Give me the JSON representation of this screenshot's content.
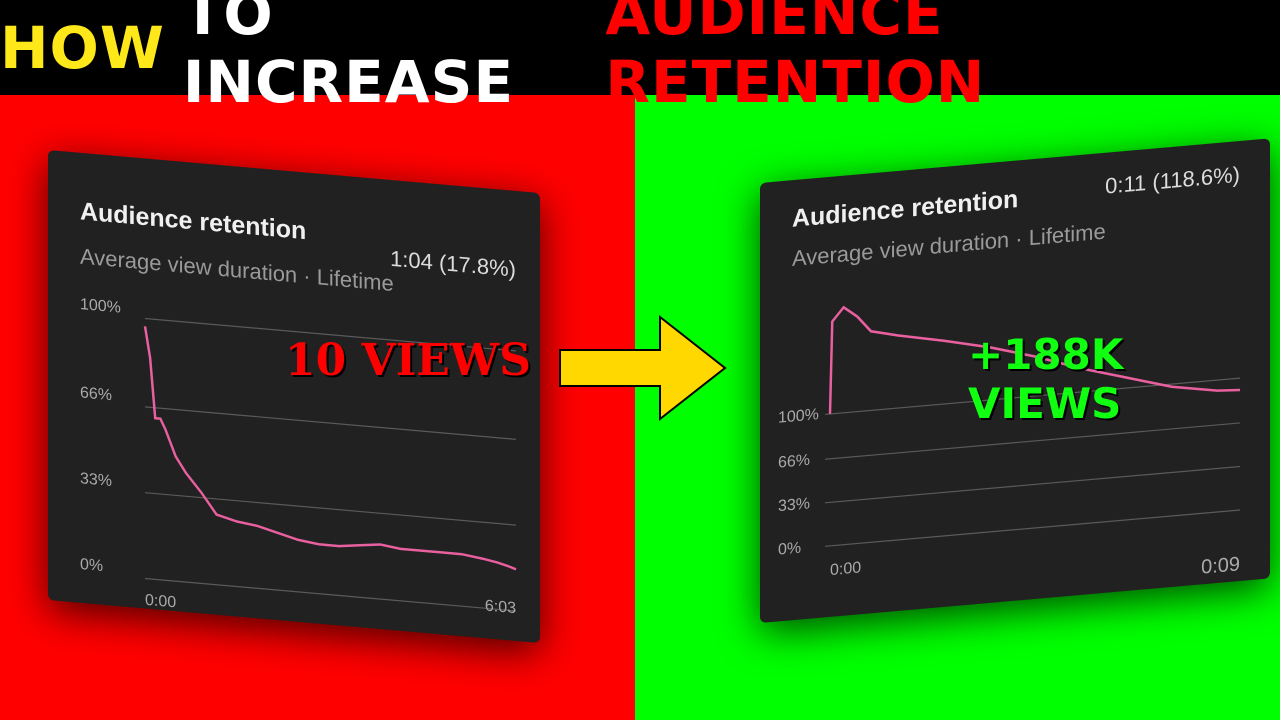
{
  "headline": [
    "HOW",
    "TO INCREASE",
    "AUDIENCE RETENTION"
  ],
  "chart_data": [
    {
      "type": "line",
      "title": "Audience retention",
      "subtitle": "Average view duration · Lifetime",
      "stat": "1:04 (17.8%)",
      "annotation": "10 VIEWS",
      "x": [
        0,
        5,
        10,
        15,
        20,
        30,
        40,
        55,
        70,
        90,
        110,
        130,
        150,
        170,
        190,
        210,
        230,
        250,
        270,
        290,
        310,
        330,
        345,
        355,
        363
      ],
      "values": [
        97,
        85,
        62,
        62,
        58,
        48,
        42,
        35,
        27,
        25,
        24,
        22,
        20,
        19,
        19,
        20,
        21,
        20,
        20,
        20,
        20,
        19,
        18,
        17,
        16
      ],
      "color": "#e8609f",
      "xlim": [
        0,
        363
      ],
      "ylim": [
        0,
        100
      ],
      "xticks": [
        {
          "value": 0,
          "label": "0:00"
        },
        {
          "value": 363,
          "label": "6:03"
        }
      ],
      "yticks": [
        {
          "value": 0,
          "label": "0%"
        },
        {
          "value": 33,
          "label": "33%"
        },
        {
          "value": 66,
          "label": "66%"
        },
        {
          "value": 100,
          "label": "100%"
        }
      ],
      "grid": true
    },
    {
      "type": "line",
      "title": "Audience retention",
      "subtitle": "Average view duration · Lifetime",
      "stat": "0:11 (118.6%)",
      "annotation": "+188K VIEWS",
      "x": [
        0,
        0.05,
        0.3,
        0.6,
        0.9,
        1.5,
        2.5,
        3.5,
        4.5,
        5.5,
        6.5,
        7.5,
        8.5,
        9
      ],
      "values": [
        100,
        170,
        180,
        172,
        160,
        155,
        148,
        140,
        130,
        118,
        108,
        98,
        92,
        91
      ],
      "color": "#e8609f",
      "xlim": [
        0,
        9
      ],
      "ylim": [
        0,
        185
      ],
      "xticks": [
        {
          "value": 0,
          "label": "0:00"
        },
        {
          "value": 9,
          "label": "0:09"
        }
      ],
      "yticks": [
        {
          "value": 0,
          "label": "0%"
        },
        {
          "value": 33,
          "label": "33%"
        },
        {
          "value": 66,
          "label": "66%"
        },
        {
          "value": 100,
          "label": "100%"
        }
      ],
      "grid": true
    }
  ]
}
